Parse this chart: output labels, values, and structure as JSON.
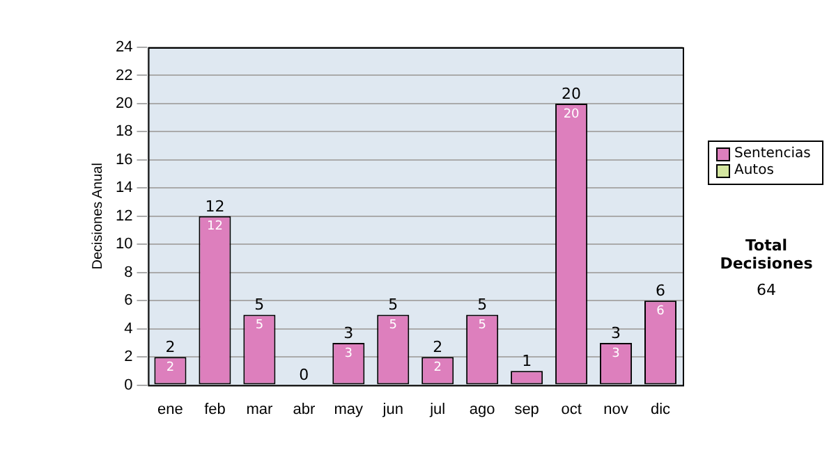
{
  "chart_data": {
    "type": "bar",
    "ylabel": "Decisiones Anual",
    "categories": [
      "ene",
      "feb",
      "mar",
      "abr",
      "may",
      "jun",
      "jul",
      "ago",
      "sep",
      "oct",
      "nov",
      "dic"
    ],
    "stacked": true,
    "series": [
      {
        "name": "Sentencias",
        "color": "#dd7fbd",
        "values": [
          2,
          12,
          5,
          0,
          3,
          5,
          2,
          5,
          1,
          20,
          3,
          6
        ],
        "value_labels": [
          "2",
          "12",
          "5",
          null,
          "3",
          "5",
          "2",
          "5",
          null,
          "20",
          "3",
          "6"
        ]
      },
      {
        "name": "Autos",
        "color": "#d4e6a0",
        "values": [
          0,
          0,
          0,
          0,
          0,
          0,
          0,
          0,
          0,
          0,
          0,
          0
        ]
      }
    ],
    "totals": [
      "2",
      "12",
      "5",
      "0",
      "3",
      "5",
      "2",
      "5",
      "1",
      "20",
      "3",
      "6"
    ],
    "ylim": [
      0,
      24
    ],
    "yticks": [
      0,
      2,
      4,
      6,
      8,
      10,
      12,
      14,
      16,
      18,
      20,
      22,
      24
    ],
    "grid": "y",
    "legend": "right",
    "annotations": [
      "Total Decisiones",
      "64"
    ]
  }
}
